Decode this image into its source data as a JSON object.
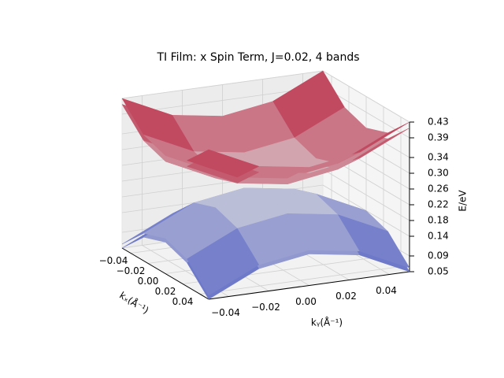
{
  "chart_data": {
    "type": "surface3d",
    "title": "TI Film: x Spin Term, J=0.02, 4 bands",
    "xlabel": "kₓ(Å⁻¹)",
    "ylabel": "kᵧ(Å⁻¹)",
    "zlabel": "E/eV",
    "x": [
      -0.05,
      -0.025,
      0,
      0.025,
      0.05
    ],
    "y": [
      -0.05,
      -0.025,
      0,
      0.025,
      0.05
    ],
    "xlim": [
      -0.05,
      0.05
    ],
    "ylim": [
      -0.05,
      0.05
    ],
    "zlim": [
      0.05,
      0.43
    ],
    "xticks": [
      {
        "value": -0.04,
        "label": "−0.04"
      },
      {
        "value": -0.02,
        "label": "−0.02"
      },
      {
        "value": 0,
        "label": "0.00"
      },
      0.02,
      0.04
    ],
    "yticks": [
      {
        "value": -0.04,
        "label": "−0.04"
      },
      {
        "value": -0.02,
        "label": "−0.02"
      },
      {
        "value": 0,
        "label": "0.00"
      },
      0.02,
      0.04
    ],
    "zticks": [
      0.05,
      0.09,
      0.14,
      0.18,
      0.22,
      0.26,
      {
        "value": 0.3,
        "label": "0.30"
      },
      0.34,
      0.39,
      0.43
    ],
    "colormap": "coolwarm",
    "grid": true,
    "series": [
      {
        "values": [
          [
            0.43,
            0.37,
            0.35,
            0.37,
            0.43
          ],
          [
            0.37,
            0.31,
            0.29,
            0.31,
            0.37
          ],
          [
            0.35,
            0.29,
            0.27,
            0.29,
            0.35
          ],
          [
            0.37,
            0.31,
            0.29,
            0.31,
            0.37
          ],
          [
            0.43,
            0.37,
            0.35,
            0.37,
            0.43
          ]
        ]
      },
      {
        "values": [
          [
            0.415,
            0.355,
            0.335,
            0.355,
            0.415
          ],
          [
            0.355,
            0.295,
            0.275,
            0.295,
            0.355
          ],
          [
            0.335,
            0.275,
            0.255,
            0.275,
            0.335
          ],
          [
            0.355,
            0.295,
            0.275,
            0.295,
            0.355
          ],
          [
            0.415,
            0.355,
            0.335,
            0.355,
            0.415
          ]
        ]
      },
      {
        "values": [
          [
            0.06,
            0.12,
            0.14,
            0.12,
            0.06
          ],
          [
            0.12,
            0.18,
            0.2,
            0.18,
            0.12
          ],
          [
            0.14,
            0.2,
            0.22,
            0.2,
            0.14
          ],
          [
            0.12,
            0.18,
            0.2,
            0.18,
            0.12
          ],
          [
            0.06,
            0.12,
            0.14,
            0.12,
            0.06
          ]
        ]
      },
      {
        "values": [
          [
            0.05,
            0.11,
            0.13,
            0.11,
            0.05
          ],
          [
            0.11,
            0.17,
            0.19,
            0.17,
            0.11
          ],
          [
            0.13,
            0.19,
            0.21,
            0.19,
            0.13
          ],
          [
            0.11,
            0.17,
            0.19,
            0.17,
            0.11
          ],
          [
            0.05,
            0.11,
            0.13,
            0.11,
            0.05
          ]
        ]
      }
    ]
  }
}
